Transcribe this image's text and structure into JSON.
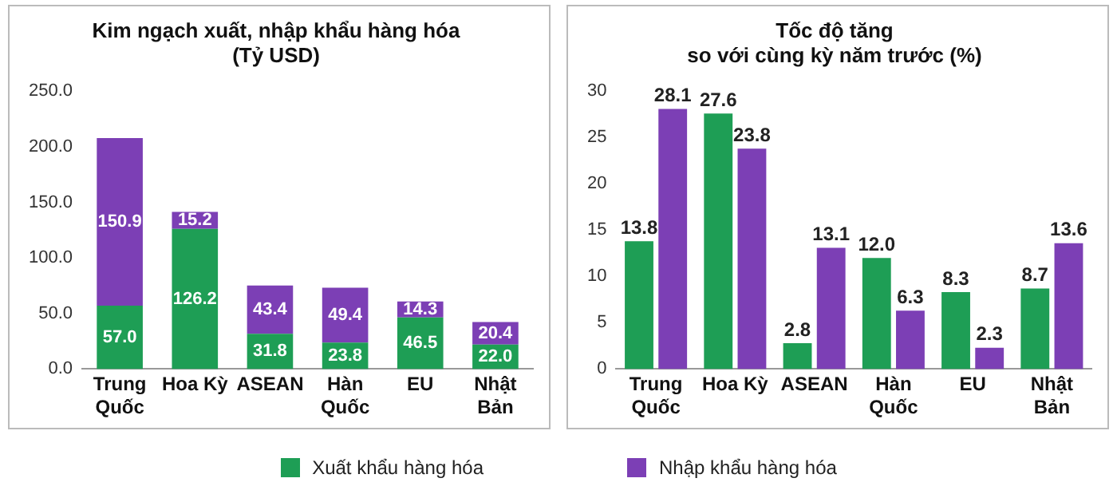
{
  "chart_data": [
    {
      "type": "bar",
      "stacked": true,
      "title": "Kim ngạch xuất, nhập khẩu hàng hóa\n(Tỷ USD)",
      "categories": [
        "Trung Quốc",
        "Hoa Kỳ",
        "ASEAN",
        "Hàn Quốc",
        "EU",
        "Nhật Bản"
      ],
      "ylim": [
        0,
        250
      ],
      "yticks": [
        {
          "value": 0,
          "label": "0.0"
        },
        {
          "value": 50,
          "label": "50.0"
        },
        {
          "value": 100,
          "label": "100.0"
        },
        {
          "value": 150,
          "label": "150.0"
        },
        {
          "value": 200,
          "label": "200.0"
        },
        {
          "value": 250,
          "label": "250.0"
        }
      ],
      "series": [
        {
          "color": "#1e9e55",
          "values": [
            57.0,
            126.2,
            31.8,
            23.8,
            46.5,
            22.0
          ],
          "value_labels": [
            "57.0",
            "126.2",
            "31.8",
            "23.8",
            "46.5",
            "22.0"
          ]
        },
        {
          "color": "#7c3fb5",
          "values": [
            150.9,
            15.2,
            43.4,
            49.4,
            14.3,
            20.4
          ],
          "value_labels": [
            "150.9",
            "15.2",
            "43.4",
            "49.4",
            "14.3",
            "20.4"
          ]
        }
      ]
    },
    {
      "type": "bar",
      "title": "Tốc độ tăng\nso với cùng kỳ năm trước (%)",
      "categories": [
        "Trung Quốc",
        "Hoa Kỳ",
        "ASEAN",
        "Hàn Quốc",
        "EU",
        "Nhật Bản"
      ],
      "ylim": [
        0,
        30
      ],
      "yticks": [
        0,
        5,
        10,
        15,
        20,
        25,
        30
      ],
      "legend": "bottom",
      "series": [
        {
          "name": "Xuất khẩu hàng hóa",
          "color": "#1e9e55",
          "values": [
            13.8,
            27.6,
            2.8,
            12.0,
            8.3,
            8.7
          ],
          "value_labels": [
            "13.8",
            "27.6",
            "2.8",
            "12.0",
            "8.3",
            "8.7"
          ]
        },
        {
          "name": "Nhập khẩu hàng hóa",
          "color": "#7c3fb5",
          "values": [
            28.1,
            23.8,
            13.1,
            6.3,
            2.3,
            13.6
          ],
          "value_labels": [
            "28.1",
            "23.8",
            "13.1",
            "6.3",
            "2.3",
            "13.6"
          ]
        }
      ]
    }
  ]
}
